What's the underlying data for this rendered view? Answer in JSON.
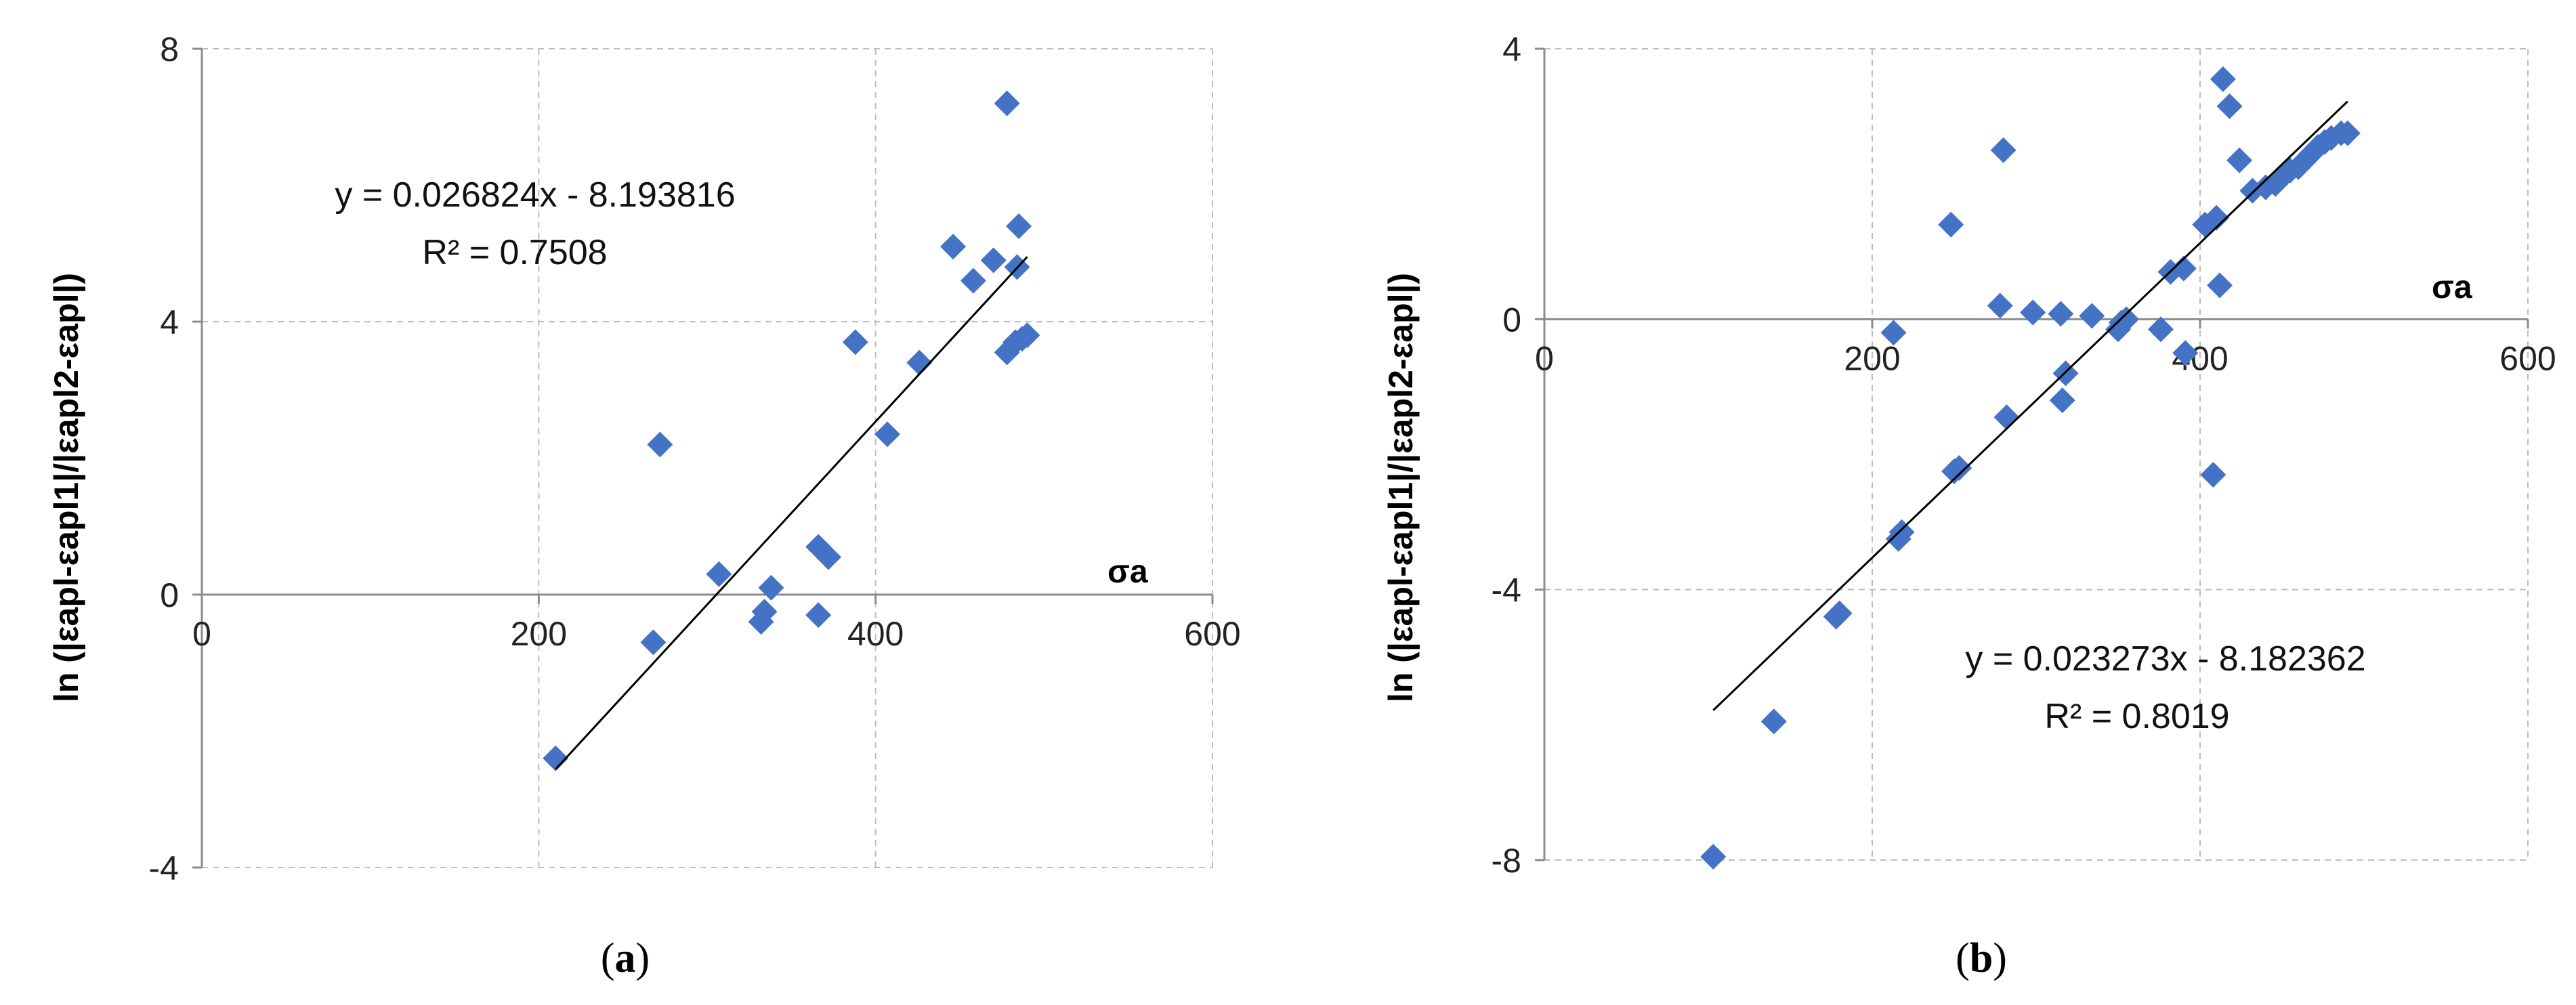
{
  "chart_data": [
    {
      "type": "scatter",
      "caption": {
        "open": "(",
        "letter": "a",
        "close": ")"
      },
      "xlabel": "σa",
      "ylabel": "ln (|εapl-εapl1|/|εapl2-εapl|)",
      "xlim": [
        0,
        600
      ],
      "ylim": [
        -4,
        8
      ],
      "xticks": [
        0,
        200,
        400,
        600
      ],
      "yticks": [
        -4,
        0,
        4,
        8
      ],
      "grid": true,
      "marker_color": "#4472C4",
      "trendline": {
        "slope": 0.026824,
        "intercept": -8.193816,
        "x_range": [
          210,
          490
        ]
      },
      "equation": "y = 0.026824x - 8.193816",
      "r_squared": "R² = 0.7508",
      "points": [
        [
          210,
          -2.4
        ],
        [
          268,
          -0.7
        ],
        [
          272,
          2.2
        ],
        [
          307,
          0.3
        ],
        [
          332,
          -0.4
        ],
        [
          334,
          -0.25
        ],
        [
          338,
          0.1
        ],
        [
          366,
          -0.3
        ],
        [
          366,
          0.7
        ],
        [
          372,
          0.55
        ],
        [
          388,
          3.7
        ],
        [
          407,
          2.35
        ],
        [
          426,
          3.4
        ],
        [
          446,
          5.1
        ],
        [
          458,
          4.6
        ],
        [
          470,
          4.9
        ],
        [
          478,
          7.2
        ],
        [
          478,
          3.55
        ],
        [
          483,
          3.7
        ],
        [
          484,
          4.8
        ],
        [
          485,
          5.4
        ],
        [
          487,
          3.75
        ],
        [
          490,
          3.8
        ]
      ]
    },
    {
      "type": "scatter",
      "caption": {
        "open": "(",
        "letter": "b",
        "close": ")"
      },
      "xlabel": "σa",
      "ylabel": "ln (|εapl-εapl1|/|εapl2-εapl|)",
      "xlim": [
        0,
        600
      ],
      "ylim": [
        -8,
        4
      ],
      "xticks": [
        0,
        200,
        400,
        600
      ],
      "yticks": [
        -8,
        -4,
        0,
        4
      ],
      "grid": true,
      "marker_color": "#4472C4",
      "trendline": {
        "slope": 0.023273,
        "intercept": -8.182362,
        "x_range": [
          103,
          490
        ]
      },
      "equation": "y = 0.023273x - 8.182362",
      "r_squared": "R² = 0.8019",
      "points": [
        [
          103,
          -7.95
        ],
        [
          140,
          -5.95
        ],
        [
          178,
          -4.4
        ],
        [
          180,
          -4.35
        ],
        [
          213,
          -0.2
        ],
        [
          216,
          -3.25
        ],
        [
          218,
          -3.15
        ],
        [
          248,
          1.4
        ],
        [
          250,
          -2.25
        ],
        [
          253,
          -2.2
        ],
        [
          278,
          0.2
        ],
        [
          280,
          2.5
        ],
        [
          282,
          -1.45
        ],
        [
          298,
          0.1
        ],
        [
          315,
          0.08
        ],
        [
          316,
          -1.2
        ],
        [
          318,
          -0.8
        ],
        [
          334,
          0.05
        ],
        [
          350,
          -0.15
        ],
        [
          352,
          -0.05
        ],
        [
          355,
          0.0
        ],
        [
          376,
          -0.15
        ],
        [
          382,
          0.7
        ],
        [
          390,
          0.75
        ],
        [
          391,
          -0.5
        ],
        [
          403,
          1.4
        ],
        [
          408,
          -2.3
        ],
        [
          410,
          1.5
        ],
        [
          412,
          0.5
        ],
        [
          414,
          3.55
        ],
        [
          418,
          3.15
        ],
        [
          424,
          2.35
        ],
        [
          432,
          1.9
        ],
        [
          440,
          1.95
        ],
        [
          446,
          2.0
        ],
        [
          450,
          2.1
        ],
        [
          455,
          2.2
        ],
        [
          460,
          2.25
        ],
        [
          464,
          2.35
        ],
        [
          468,
          2.45
        ],
        [
          472,
          2.55
        ],
        [
          476,
          2.62
        ],
        [
          480,
          2.68
        ],
        [
          486,
          2.75
        ],
        [
          490,
          2.75
        ]
      ]
    }
  ]
}
